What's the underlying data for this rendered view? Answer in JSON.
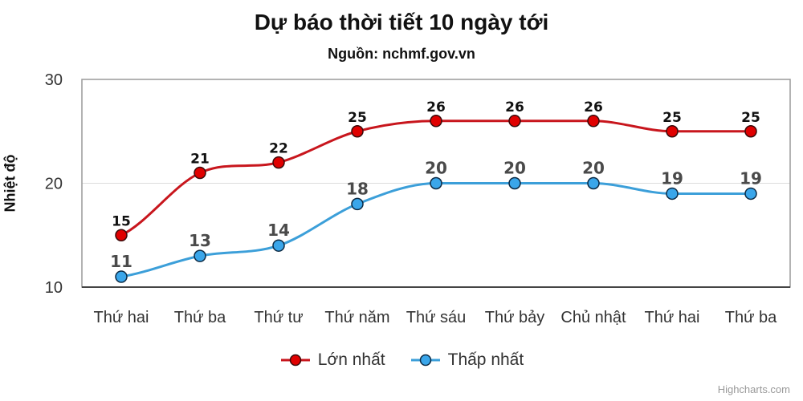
{
  "title": "Dự báo thời tiết 10 ngày tới",
  "subtitle": "Nguồn: nchmf.gov.vn",
  "credits": "Highcharts.com",
  "colors": {
    "max": "#e00000",
    "max_line": "#c8161d",
    "min": "#3aa6ea",
    "min_line": "#3c9fd9"
  },
  "legend": [
    {
      "label": "Lớn nhất",
      "color": "#e00000"
    },
    {
      "label": "Thấp nhất",
      "color": "#3aa6ea"
    }
  ],
  "chart_data": {
    "type": "line",
    "title": "Dự báo thời tiết 10 ngày tới",
    "subtitle": "Nguồn: nchmf.gov.vn",
    "xlabel": "",
    "ylabel": "Nhiệt độ",
    "ylim": [
      10,
      30
    ],
    "yticks": [
      10,
      20,
      30
    ],
    "grid": true,
    "legend_position": "bottom",
    "categories": [
      "Thứ hai",
      "Thứ ba",
      "Thứ tư",
      "Thứ năm",
      "Thứ sáu",
      "Thứ bảy",
      "Chủ nhật",
      "Thứ hai",
      "Thứ ba"
    ],
    "series": [
      {
        "name": "Lớn nhất",
        "values": [
          15,
          21,
          22,
          25,
          26,
          26,
          26,
          25,
          25
        ]
      },
      {
        "name": "Thấp nhất",
        "values": [
          11,
          13,
          14,
          18,
          20,
          20,
          20,
          19,
          19
        ]
      }
    ]
  }
}
